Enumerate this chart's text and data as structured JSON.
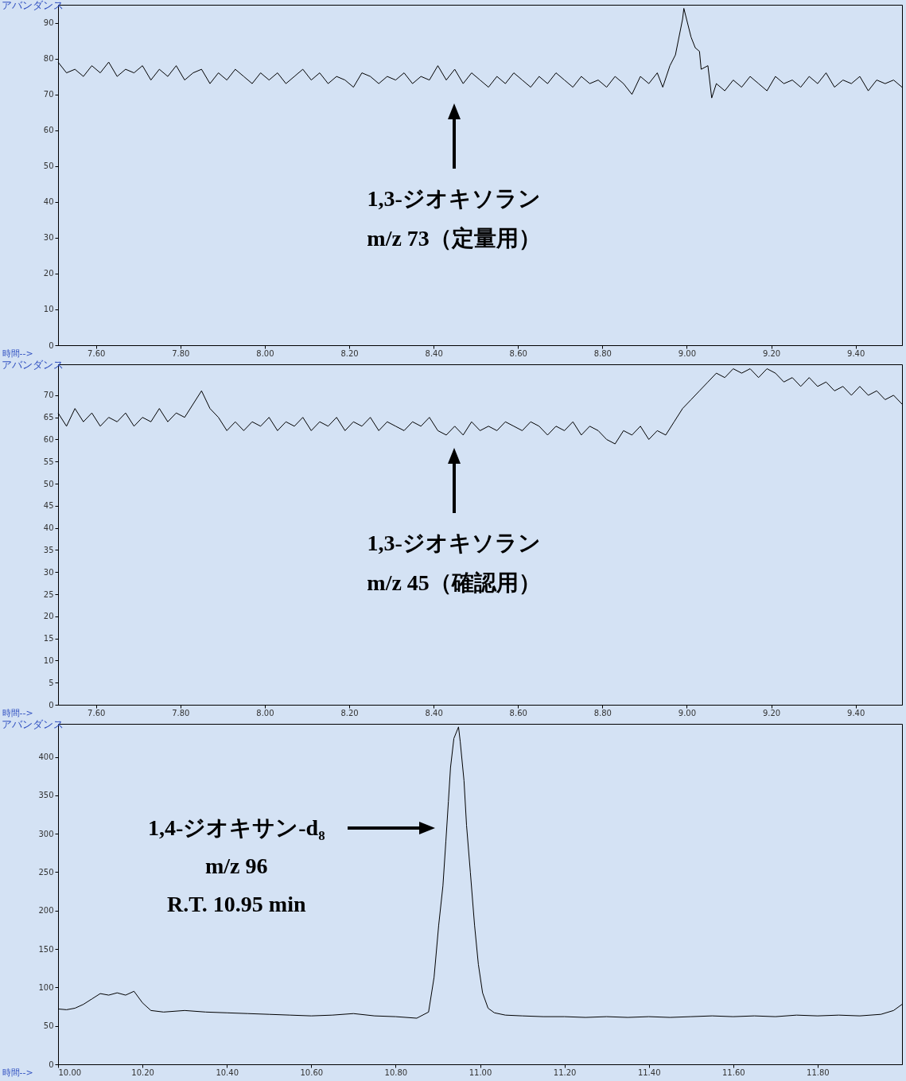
{
  "chart_data": [
    {
      "type": "line",
      "xlabel": "時間-->",
      "ylabel": "アバンダンス",
      "color": "#000000",
      "xlim": [
        7.51,
        9.51
      ],
      "ylim": [
        0,
        95
      ],
      "xticks": [
        {
          "value": 7.6,
          "label": "7.60"
        },
        {
          "value": 7.8,
          "label": "7.80"
        },
        {
          "value": 8.0,
          "label": "8.00"
        },
        {
          "value": 8.2,
          "label": "8.20"
        },
        {
          "value": 8.4,
          "label": "8.40"
        },
        {
          "value": 8.6,
          "label": "8.60"
        },
        {
          "value": 8.8,
          "label": "8.80"
        },
        {
          "value": 9.0,
          "label": "9.00"
        },
        {
          "value": 9.2,
          "label": "9.20"
        },
        {
          "value": 9.4,
          "label": "9.40"
        }
      ],
      "yticks": [
        0,
        10,
        20,
        30,
        40,
        50,
        60,
        70,
        80,
        90
      ],
      "x": [
        7.51,
        7.53,
        7.55,
        7.57,
        7.59,
        7.61,
        7.63,
        7.65,
        7.67,
        7.69,
        7.71,
        7.73,
        7.75,
        7.77,
        7.79,
        7.81,
        7.83,
        7.85,
        7.87,
        7.89,
        7.91,
        7.93,
        7.95,
        7.97,
        7.99,
        8.01,
        8.03,
        8.05,
        8.07,
        8.09,
        8.11,
        8.13,
        8.15,
        8.17,
        8.19,
        8.21,
        8.23,
        8.25,
        8.27,
        8.29,
        8.31,
        8.33,
        8.35,
        8.37,
        8.39,
        8.41,
        8.43,
        8.45,
        8.47,
        8.49,
        8.51,
        8.53,
        8.55,
        8.57,
        8.59,
        8.61,
        8.63,
        8.65,
        8.67,
        8.69,
        8.71,
        8.73,
        8.75,
        8.77,
        8.79,
        8.81,
        8.83,
        8.85,
        8.87,
        8.89,
        8.91,
        8.93,
        8.943,
        8.96,
        8.973,
        8.99,
        8.993,
        9.01,
        9.02,
        9.03,
        9.034,
        9.05,
        9.059,
        9.07,
        9.09,
        9.11,
        9.13,
        9.15,
        9.17,
        9.19,
        9.21,
        9.23,
        9.25,
        9.27,
        9.29,
        9.31,
        9.33,
        9.35,
        9.37,
        9.39,
        9.41,
        9.43,
        9.45,
        9.47,
        9.49,
        9.51
      ],
      "values": [
        79,
        76,
        77,
        75,
        78,
        76,
        79,
        75,
        77,
        76,
        78,
        74,
        77,
        75,
        78,
        74,
        76,
        77,
        73,
        76,
        74,
        77,
        75,
        73,
        76,
        74,
        76,
        73,
        75,
        77,
        74,
        76,
        73,
        75,
        74,
        72,
        76,
        75,
        73,
        75,
        74,
        76,
        73,
        75,
        74,
        78,
        74,
        77,
        73,
        76,
        74,
        72,
        75,
        73,
        76,
        74,
        72,
        75,
        73,
        76,
        74,
        72,
        75,
        73,
        74,
        72,
        75,
        73,
        70,
        75,
        73,
        76,
        72,
        78,
        81,
        91,
        94,
        86,
        83,
        82,
        77,
        78,
        69,
        73,
        71,
        74,
        72,
        75,
        73,
        71,
        75,
        73,
        74,
        72,
        75,
        73,
        76,
        72,
        74,
        73,
        75,
        71,
        74,
        73,
        74,
        72
      ],
      "annotations": [
        "1,3-ジオキソラン\nm/z 73（定量用）"
      ]
    },
    {
      "type": "line",
      "xlabel": "時間-->",
      "ylabel": "アバンダンス",
      "color": "#000000",
      "xlim": [
        7.51,
        9.51
      ],
      "ylim": [
        0,
        77
      ],
      "xticks": [
        {
          "value": 7.6,
          "label": "7.60"
        },
        {
          "value": 7.8,
          "label": "7.80"
        },
        {
          "value": 8.0,
          "label": "8.00"
        },
        {
          "value": 8.2,
          "label": "8.20"
        },
        {
          "value": 8.4,
          "label": "8.40"
        },
        {
          "value": 8.6,
          "label": "8.60"
        },
        {
          "value": 8.8,
          "label": "8.80"
        },
        {
          "value": 9.0,
          "label": "9.00"
        },
        {
          "value": 9.2,
          "label": "9.20"
        },
        {
          "value": 9.4,
          "label": "9.40"
        }
      ],
      "yticks": [
        0,
        5,
        10,
        15,
        20,
        25,
        30,
        35,
        40,
        45,
        50,
        55,
        60,
        65,
        70
      ],
      "x": [
        7.51,
        7.53,
        7.55,
        7.57,
        7.59,
        7.61,
        7.63,
        7.65,
        7.67,
        7.69,
        7.71,
        7.73,
        7.75,
        7.77,
        7.79,
        7.81,
        7.83,
        7.85,
        7.87,
        7.89,
        7.91,
        7.93,
        7.95,
        7.97,
        7.99,
        8.01,
        8.03,
        8.05,
        8.07,
        8.09,
        8.11,
        8.13,
        8.15,
        8.17,
        8.19,
        8.21,
        8.23,
        8.25,
        8.27,
        8.29,
        8.31,
        8.33,
        8.35,
        8.37,
        8.39,
        8.41,
        8.43,
        8.45,
        8.47,
        8.49,
        8.51,
        8.53,
        8.55,
        8.57,
        8.59,
        8.61,
        8.63,
        8.65,
        8.67,
        8.69,
        8.71,
        8.73,
        8.75,
        8.77,
        8.79,
        8.81,
        8.83,
        8.85,
        8.87,
        8.89,
        8.91,
        8.93,
        8.95,
        8.97,
        8.99,
        9.01,
        9.03,
        9.05,
        9.07,
        9.09,
        9.11,
        9.13,
        9.15,
        9.17,
        9.19,
        9.21,
        9.23,
        9.25,
        9.27,
        9.29,
        9.31,
        9.33,
        9.35,
        9.37,
        9.39,
        9.41,
        9.43,
        9.45,
        9.47,
        9.49,
        9.51
      ],
      "values": [
        66,
        63,
        67,
        64,
        66,
        63,
        65,
        64,
        66,
        63,
        65,
        64,
        67,
        64,
        66,
        65,
        68,
        71,
        67,
        65,
        62,
        64,
        62,
        64,
        63,
        65,
        62,
        64,
        63,
        65,
        62,
        64,
        63,
        65,
        62,
        64,
        63,
        65,
        62,
        64,
        63,
        62,
        64,
        63,
        65,
        62,
        61,
        63,
        61,
        64,
        62,
        63,
        62,
        64,
        63,
        62,
        64,
        63,
        61,
        63,
        62,
        64,
        61,
        63,
        62,
        60,
        59,
        62,
        61,
        63,
        60,
        62,
        61,
        64,
        67,
        69,
        71,
        73,
        75,
        74,
        76,
        75,
        76,
        74,
        76,
        75,
        73,
        74,
        72,
        74,
        72,
        73,
        71,
        72,
        70,
        72,
        70,
        71,
        69,
        70,
        68
      ],
      "annotations": [
        "1,3-ジオキソラン\nm/z 45（確認用）"
      ]
    },
    {
      "type": "line",
      "xlabel": "時間-->",
      "ylabel": "アバンダンス",
      "color": "#000000",
      "xlim": [
        10.0,
        12.0
      ],
      "ylim": [
        0,
        443
      ],
      "xticks": [
        {
          "value": 10.0,
          "label": "10.00"
        },
        {
          "value": 10.2,
          "label": "10.20"
        },
        {
          "value": 10.4,
          "label": "10.40"
        },
        {
          "value": 10.6,
          "label": "10.60"
        },
        {
          "value": 10.8,
          "label": "10.80"
        },
        {
          "value": 11.0,
          "label": "11.00"
        },
        {
          "value": 11.2,
          "label": "11.20"
        },
        {
          "value": 11.4,
          "label": "11.40"
        },
        {
          "value": 11.6,
          "label": "11.60"
        },
        {
          "value": 11.8,
          "label": "11.80"
        }
      ],
      "yticks": [
        0,
        50,
        100,
        150,
        200,
        250,
        300,
        350,
        400
      ],
      "x": [
        10.0,
        10.02,
        10.04,
        10.06,
        10.08,
        10.1,
        10.12,
        10.14,
        10.16,
        10.18,
        10.2,
        10.22,
        10.25,
        10.3,
        10.35,
        10.4,
        10.45,
        10.5,
        10.55,
        10.6,
        10.65,
        10.7,
        10.75,
        10.8,
        10.85,
        10.878,
        10.891,
        10.902,
        10.912,
        10.919,
        10.925,
        10.93,
        10.938,
        10.949,
        10.953,
        10.962,
        10.968,
        10.977,
        10.987,
        10.996,
        11.006,
        11.019,
        11.034,
        11.06,
        11.1,
        11.15,
        11.2,
        11.25,
        11.3,
        11.35,
        11.4,
        11.45,
        11.5,
        11.55,
        11.6,
        11.65,
        11.7,
        11.75,
        11.8,
        11.85,
        11.9,
        11.95,
        11.98,
        12.0
      ],
      "values": [
        72,
        71,
        73,
        78,
        85,
        92,
        90,
        93,
        90,
        95,
        80,
        70,
        68,
        70,
        68,
        67,
        66,
        65,
        64,
        63,
        64,
        66,
        63,
        62,
        60,
        68,
        113,
        181,
        232,
        290,
        342,
        386,
        424,
        439,
        420,
        369,
        311,
        250,
        181,
        130,
        93,
        73,
        67,
        64,
        63,
        62,
        62,
        61,
        62,
        61,
        62,
        61,
        62,
        63,
        62,
        63,
        62,
        64,
        63,
        64,
        63,
        65,
        70,
        78
      ],
      "annotations": [
        "1,4-ジオキサン-d₈\nm/z 96\nR.T. 10.95 min"
      ]
    }
  ]
}
